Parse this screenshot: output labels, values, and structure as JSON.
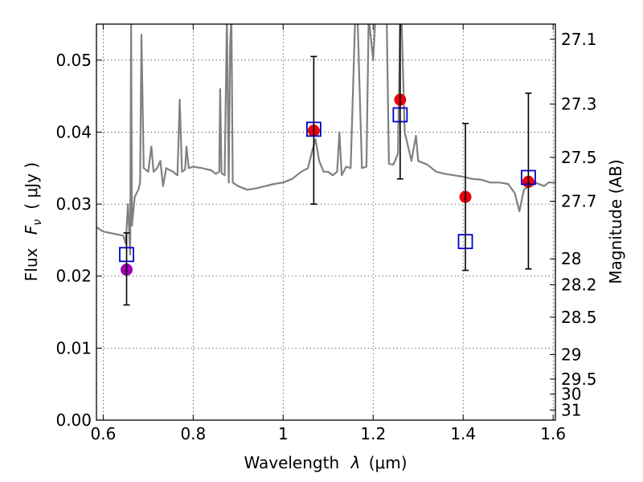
{
  "chart_data": {
    "type": "scatter",
    "xlabel": "Wavelength",
    "xlabel_math": "λ",
    "xlabel_unit": "(μm)",
    "ylabel": "Flux",
    "ylabel_math": "F",
    "ylabel_sub": "ν",
    "ylabel_unit": "( μJy )",
    "y2label": "Magnitude (AB)",
    "xlim": [
      0.585,
      1.605
    ],
    "ylim": [
      0.0,
      0.055
    ],
    "grid": true,
    "x_ticks": [
      {
        "value": 0.6,
        "label": "0.6"
      },
      {
        "value": 0.8,
        "label": "0.8"
      },
      {
        "value": 1.0,
        "label": "1"
      },
      {
        "value": 1.2,
        "label": "1.2"
      },
      {
        "value": 1.4,
        "label": "1.4"
      },
      {
        "value": 1.6,
        "label": "1.6"
      }
    ],
    "y_ticks": [
      {
        "value": 0.0,
        "label": "0.00"
      },
      {
        "value": 0.01,
        "label": "0.01"
      },
      {
        "value": 0.02,
        "label": "0.02"
      },
      {
        "value": 0.03,
        "label": "0.03"
      },
      {
        "value": 0.04,
        "label": "0.04"
      },
      {
        "value": 0.05,
        "label": "0.05"
      }
    ],
    "mag_ticks": [
      {
        "flux": 0.0529,
        "label": "27.1"
      },
      {
        "flux": 0.0439,
        "label": "27.3"
      },
      {
        "flux": 0.0365,
        "label": "27.5"
      },
      {
        "flux": 0.0304,
        "label": "27.7"
      },
      {
        "flux": 0.0224,
        "label": "28"
      },
      {
        "flux": 0.0188,
        "label": "28.2"
      },
      {
        "flux": 0.0143,
        "label": "28.5"
      },
      {
        "flux": 0.0091,
        "label": "29"
      },
      {
        "flux": 0.0057,
        "label": "29.5"
      },
      {
        "flux": 0.0036,
        "label": "30"
      },
      {
        "flux": 0.0014,
        "label": "31"
      }
    ],
    "series": [
      {
        "kind": "line",
        "color": "#808080",
        "points": [
          [
            0.585,
            0.0268
          ],
          [
            0.6,
            0.0262
          ],
          [
            0.63,
            0.0258
          ],
          [
            0.645,
            0.0256
          ],
          [
            0.65,
            0.0245
          ],
          [
            0.655,
            0.03
          ],
          [
            0.66,
            0.023
          ],
          [
            0.662,
            0.056
          ],
          [
            0.664,
            0.027
          ],
          [
            0.67,
            0.031
          ],
          [
            0.678,
            0.032
          ],
          [
            0.682,
            0.033
          ],
          [
            0.685,
            0.0535
          ],
          [
            0.69,
            0.035
          ],
          [
            0.7,
            0.0345
          ],
          [
            0.707,
            0.038
          ],
          [
            0.712,
            0.0345
          ],
          [
            0.72,
            0.035
          ],
          [
            0.727,
            0.036
          ],
          [
            0.733,
            0.0325
          ],
          [
            0.74,
            0.035
          ],
          [
            0.755,
            0.0345
          ],
          [
            0.765,
            0.034
          ],
          [
            0.77,
            0.0445
          ],
          [
            0.775,
            0.0345
          ],
          [
            0.782,
            0.0348
          ],
          [
            0.785,
            0.038
          ],
          [
            0.79,
            0.035
          ],
          [
            0.8,
            0.0352
          ],
          [
            0.82,
            0.035
          ],
          [
            0.84,
            0.0347
          ],
          [
            0.85,
            0.0342
          ],
          [
            0.858,
            0.0345
          ],
          [
            0.86,
            0.046
          ],
          [
            0.863,
            0.0343
          ],
          [
            0.87,
            0.034
          ],
          [
            0.875,
            0.056
          ],
          [
            0.879,
            0.033
          ],
          [
            0.882,
            0.052
          ],
          [
            0.885,
            0.056
          ],
          [
            0.888,
            0.033
          ],
          [
            0.9,
            0.0325
          ],
          [
            0.92,
            0.032
          ],
          [
            0.94,
            0.0322
          ],
          [
            0.96,
            0.0325
          ],
          [
            0.98,
            0.0328
          ],
          [
            1.0,
            0.033
          ],
          [
            1.02,
            0.0335
          ],
          [
            1.04,
            0.0345
          ],
          [
            1.055,
            0.035
          ],
          [
            1.065,
            0.0375
          ],
          [
            1.072,
            0.039
          ],
          [
            1.08,
            0.036
          ],
          [
            1.09,
            0.0345
          ],
          [
            1.1,
            0.0345
          ],
          [
            1.11,
            0.034
          ],
          [
            1.12,
            0.0345
          ],
          [
            1.125,
            0.04
          ],
          [
            1.13,
            0.034
          ],
          [
            1.14,
            0.0352
          ],
          [
            1.15,
            0.035
          ],
          [
            1.16,
            0.056
          ],
          [
            1.165,
            0.0565
          ],
          [
            1.175,
            0.035
          ],
          [
            1.185,
            0.0352
          ],
          [
            1.19,
            0.056
          ],
          [
            1.2,
            0.05
          ],
          [
            1.205,
            0.056
          ],
          [
            1.23,
            0.056
          ],
          [
            1.235,
            0.0356
          ],
          [
            1.245,
            0.0355
          ],
          [
            1.255,
            0.037
          ],
          [
            1.26,
            0.056
          ],
          [
            1.263,
            0.056
          ],
          [
            1.27,
            0.04
          ],
          [
            1.285,
            0.036
          ],
          [
            1.295,
            0.0395
          ],
          [
            1.3,
            0.036
          ],
          [
            1.32,
            0.0355
          ],
          [
            1.34,
            0.0345
          ],
          [
            1.36,
            0.0342
          ],
          [
            1.38,
            0.034
          ],
          [
            1.4,
            0.0338
          ],
          [
            1.42,
            0.0335
          ],
          [
            1.44,
            0.0334
          ],
          [
            1.46,
            0.033
          ],
          [
            1.48,
            0.033
          ],
          [
            1.5,
            0.0328
          ],
          [
            1.515,
            0.0315
          ],
          [
            1.525,
            0.029
          ],
          [
            1.535,
            0.032
          ],
          [
            1.545,
            0.0325
          ],
          [
            1.56,
            0.033
          ],
          [
            1.58,
            0.0325
          ],
          [
            1.59,
            0.033
          ],
          [
            1.605,
            0.033
          ]
        ]
      },
      {
        "kind": "markers",
        "marker": "circle",
        "color": "#e8000e",
        "points": [
          {
            "x": 1.068,
            "y": 0.0402
          },
          {
            "x": 1.26,
            "y": 0.0445
          },
          {
            "x": 1.405,
            "y": 0.031
          },
          {
            "x": 1.545,
            "y": 0.0331
          }
        ]
      },
      {
        "kind": "markers",
        "marker": "circle",
        "color": "#a000b4",
        "points": [
          {
            "x": 0.652,
            "y": 0.0209
          }
        ]
      },
      {
        "kind": "markers",
        "marker": "square-open",
        "color": "#0000cc",
        "points": [
          {
            "x": 0.652,
            "y": 0.023
          },
          {
            "x": 1.068,
            "y": 0.0404
          },
          {
            "x": 1.26,
            "y": 0.0424
          },
          {
            "x": 1.405,
            "y": 0.0248
          },
          {
            "x": 1.545,
            "y": 0.0337
          }
        ]
      },
      {
        "kind": "errorbars",
        "color": "#000000",
        "bars": [
          {
            "x": 0.652,
            "low": 0.016,
            "high": 0.026
          },
          {
            "x": 1.068,
            "low": 0.03,
            "high": 0.0505
          },
          {
            "x": 1.26,
            "low": 0.0335,
            "high": 0.056
          },
          {
            "x": 1.405,
            "low": 0.0208,
            "high": 0.0412
          },
          {
            "x": 1.545,
            "low": 0.021,
            "high": 0.0454
          }
        ]
      }
    ]
  }
}
